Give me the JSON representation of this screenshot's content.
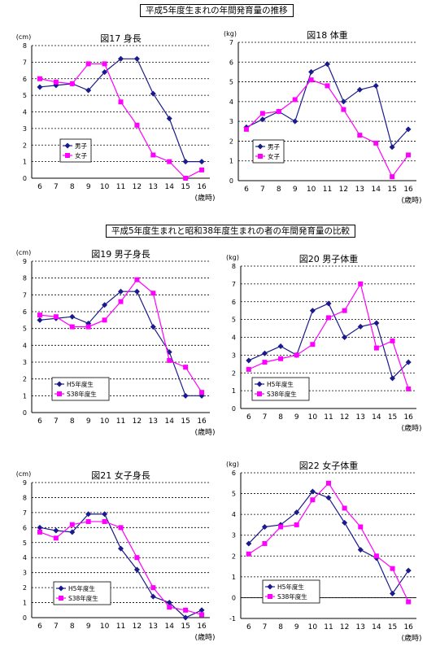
{
  "section_titles": [
    "平成5年度生まれの年間発育量の推移",
    "平成5年度生まれと昭和38年度生まれの者の年間発育量の比較"
  ],
  "colors": {
    "series_a": "#1a1a8c",
    "series_b": "#ff00ff",
    "grid": "#000000"
  },
  "chart_data": [
    {
      "type": "line",
      "title": "図17 身長",
      "unit": "(cm)",
      "xlabel": "(歳時)",
      "x": [
        6,
        7,
        8,
        9,
        10,
        11,
        12,
        13,
        14,
        15,
        16
      ],
      "ylim": [
        0,
        8
      ],
      "ystep": 1,
      "grid": true,
      "legend": "bottom-left",
      "series": [
        {
          "name": "男子",
          "values": [
            5.5,
            5.6,
            5.7,
            5.3,
            6.4,
            7.2,
            7.2,
            5.1,
            3.6,
            1.0,
            1.0
          ]
        },
        {
          "name": "女子",
          "values": [
            6.0,
            5.8,
            5.7,
            6.9,
            6.9,
            4.6,
            3.2,
            1.4,
            1.0,
            0.0,
            0.5
          ]
        }
      ]
    },
    {
      "type": "line",
      "title": "図18 体重",
      "unit": "(kg)",
      "xlabel": "(歳時)",
      "x": [
        6,
        7,
        8,
        9,
        10,
        11,
        12,
        13,
        14,
        15,
        16
      ],
      "ylim": [
        0,
        7
      ],
      "ystep": 1,
      "grid": true,
      "legend": "bottom-left",
      "series": [
        {
          "name": "男子",
          "values": [
            2.7,
            3.1,
            3.5,
            3.0,
            5.5,
            5.9,
            4.0,
            4.6,
            4.8,
            1.7,
            2.6
          ]
        },
        {
          "name": "女子",
          "values": [
            2.6,
            3.4,
            3.5,
            4.1,
            5.1,
            4.8,
            3.6,
            2.3,
            1.9,
            0.2,
            1.3
          ]
        }
      ]
    },
    {
      "type": "line",
      "title": "図19 男子身長",
      "unit": "(cm)",
      "xlabel": "(歳時)",
      "x": [
        6,
        7,
        8,
        9,
        10,
        11,
        12,
        13,
        14,
        15,
        16
      ],
      "ylim": [
        0,
        9
      ],
      "ystep": 1,
      "grid": true,
      "legend": "bottom-left",
      "series": [
        {
          "name": "H5年度生",
          "values": [
            5.5,
            5.6,
            5.7,
            5.3,
            6.4,
            7.2,
            7.2,
            5.1,
            3.6,
            1.0,
            1.0
          ]
        },
        {
          "name": "S38年度生",
          "values": [
            5.8,
            5.7,
            5.1,
            5.1,
            5.5,
            6.6,
            7.9,
            7.1,
            3.1,
            2.7,
            1.2
          ]
        }
      ]
    },
    {
      "type": "line",
      "title": "図20 男子体重",
      "unit": "(kg)",
      "xlabel": "(歳時)",
      "x": [
        6,
        7,
        8,
        9,
        10,
        11,
        12,
        13,
        14,
        15,
        16
      ],
      "ylim": [
        0,
        8
      ],
      "ystep": 1,
      "grid": true,
      "legend": "bottom-left",
      "series": [
        {
          "name": "H5年度生",
          "values": [
            2.7,
            3.1,
            3.5,
            3.0,
            5.5,
            5.9,
            4.0,
            4.6,
            4.8,
            1.7,
            2.6
          ]
        },
        {
          "name": "S38年度生",
          "values": [
            2.2,
            2.6,
            2.8,
            3.0,
            3.6,
            5.1,
            5.5,
            7.0,
            3.4,
            3.8,
            1.1
          ]
        }
      ]
    },
    {
      "type": "line",
      "title": "図21 女子身長",
      "unit": "(cm)",
      "xlabel": "(歳時)",
      "x": [
        6,
        7,
        8,
        9,
        10,
        11,
        12,
        13,
        14,
        15,
        16
      ],
      "ylim": [
        0,
        9
      ],
      "ystep": 1,
      "grid": true,
      "legend": "bottom-left",
      "series": [
        {
          "name": "H5年度生",
          "values": [
            6.0,
            5.8,
            5.7,
            6.9,
            6.9,
            4.6,
            3.2,
            1.4,
            1.0,
            0.0,
            0.5
          ]
        },
        {
          "name": "S38年度生",
          "values": [
            5.7,
            5.3,
            6.2,
            6.4,
            6.4,
            6.0,
            4.0,
            2.0,
            0.7,
            0.5,
            0.2
          ]
        }
      ]
    },
    {
      "type": "line",
      "title": "図22 女子体重",
      "unit": "(kg)",
      "xlabel": "(歳時)",
      "x": [
        6,
        7,
        8,
        9,
        10,
        11,
        12,
        13,
        14,
        15,
        16
      ],
      "ylim": [
        -1,
        6
      ],
      "ystep": 1,
      "grid": true,
      "legend": "bottom-left",
      "series": [
        {
          "name": "H5年度生",
          "values": [
            2.6,
            3.4,
            3.5,
            4.1,
            5.1,
            4.8,
            3.6,
            2.3,
            1.9,
            0.2,
            1.3
          ]
        },
        {
          "name": "S38年度生",
          "values": [
            2.1,
            2.6,
            3.4,
            3.5,
            4.7,
            5.5,
            4.3,
            3.4,
            2.0,
            1.4,
            -0.2
          ]
        }
      ]
    }
  ]
}
